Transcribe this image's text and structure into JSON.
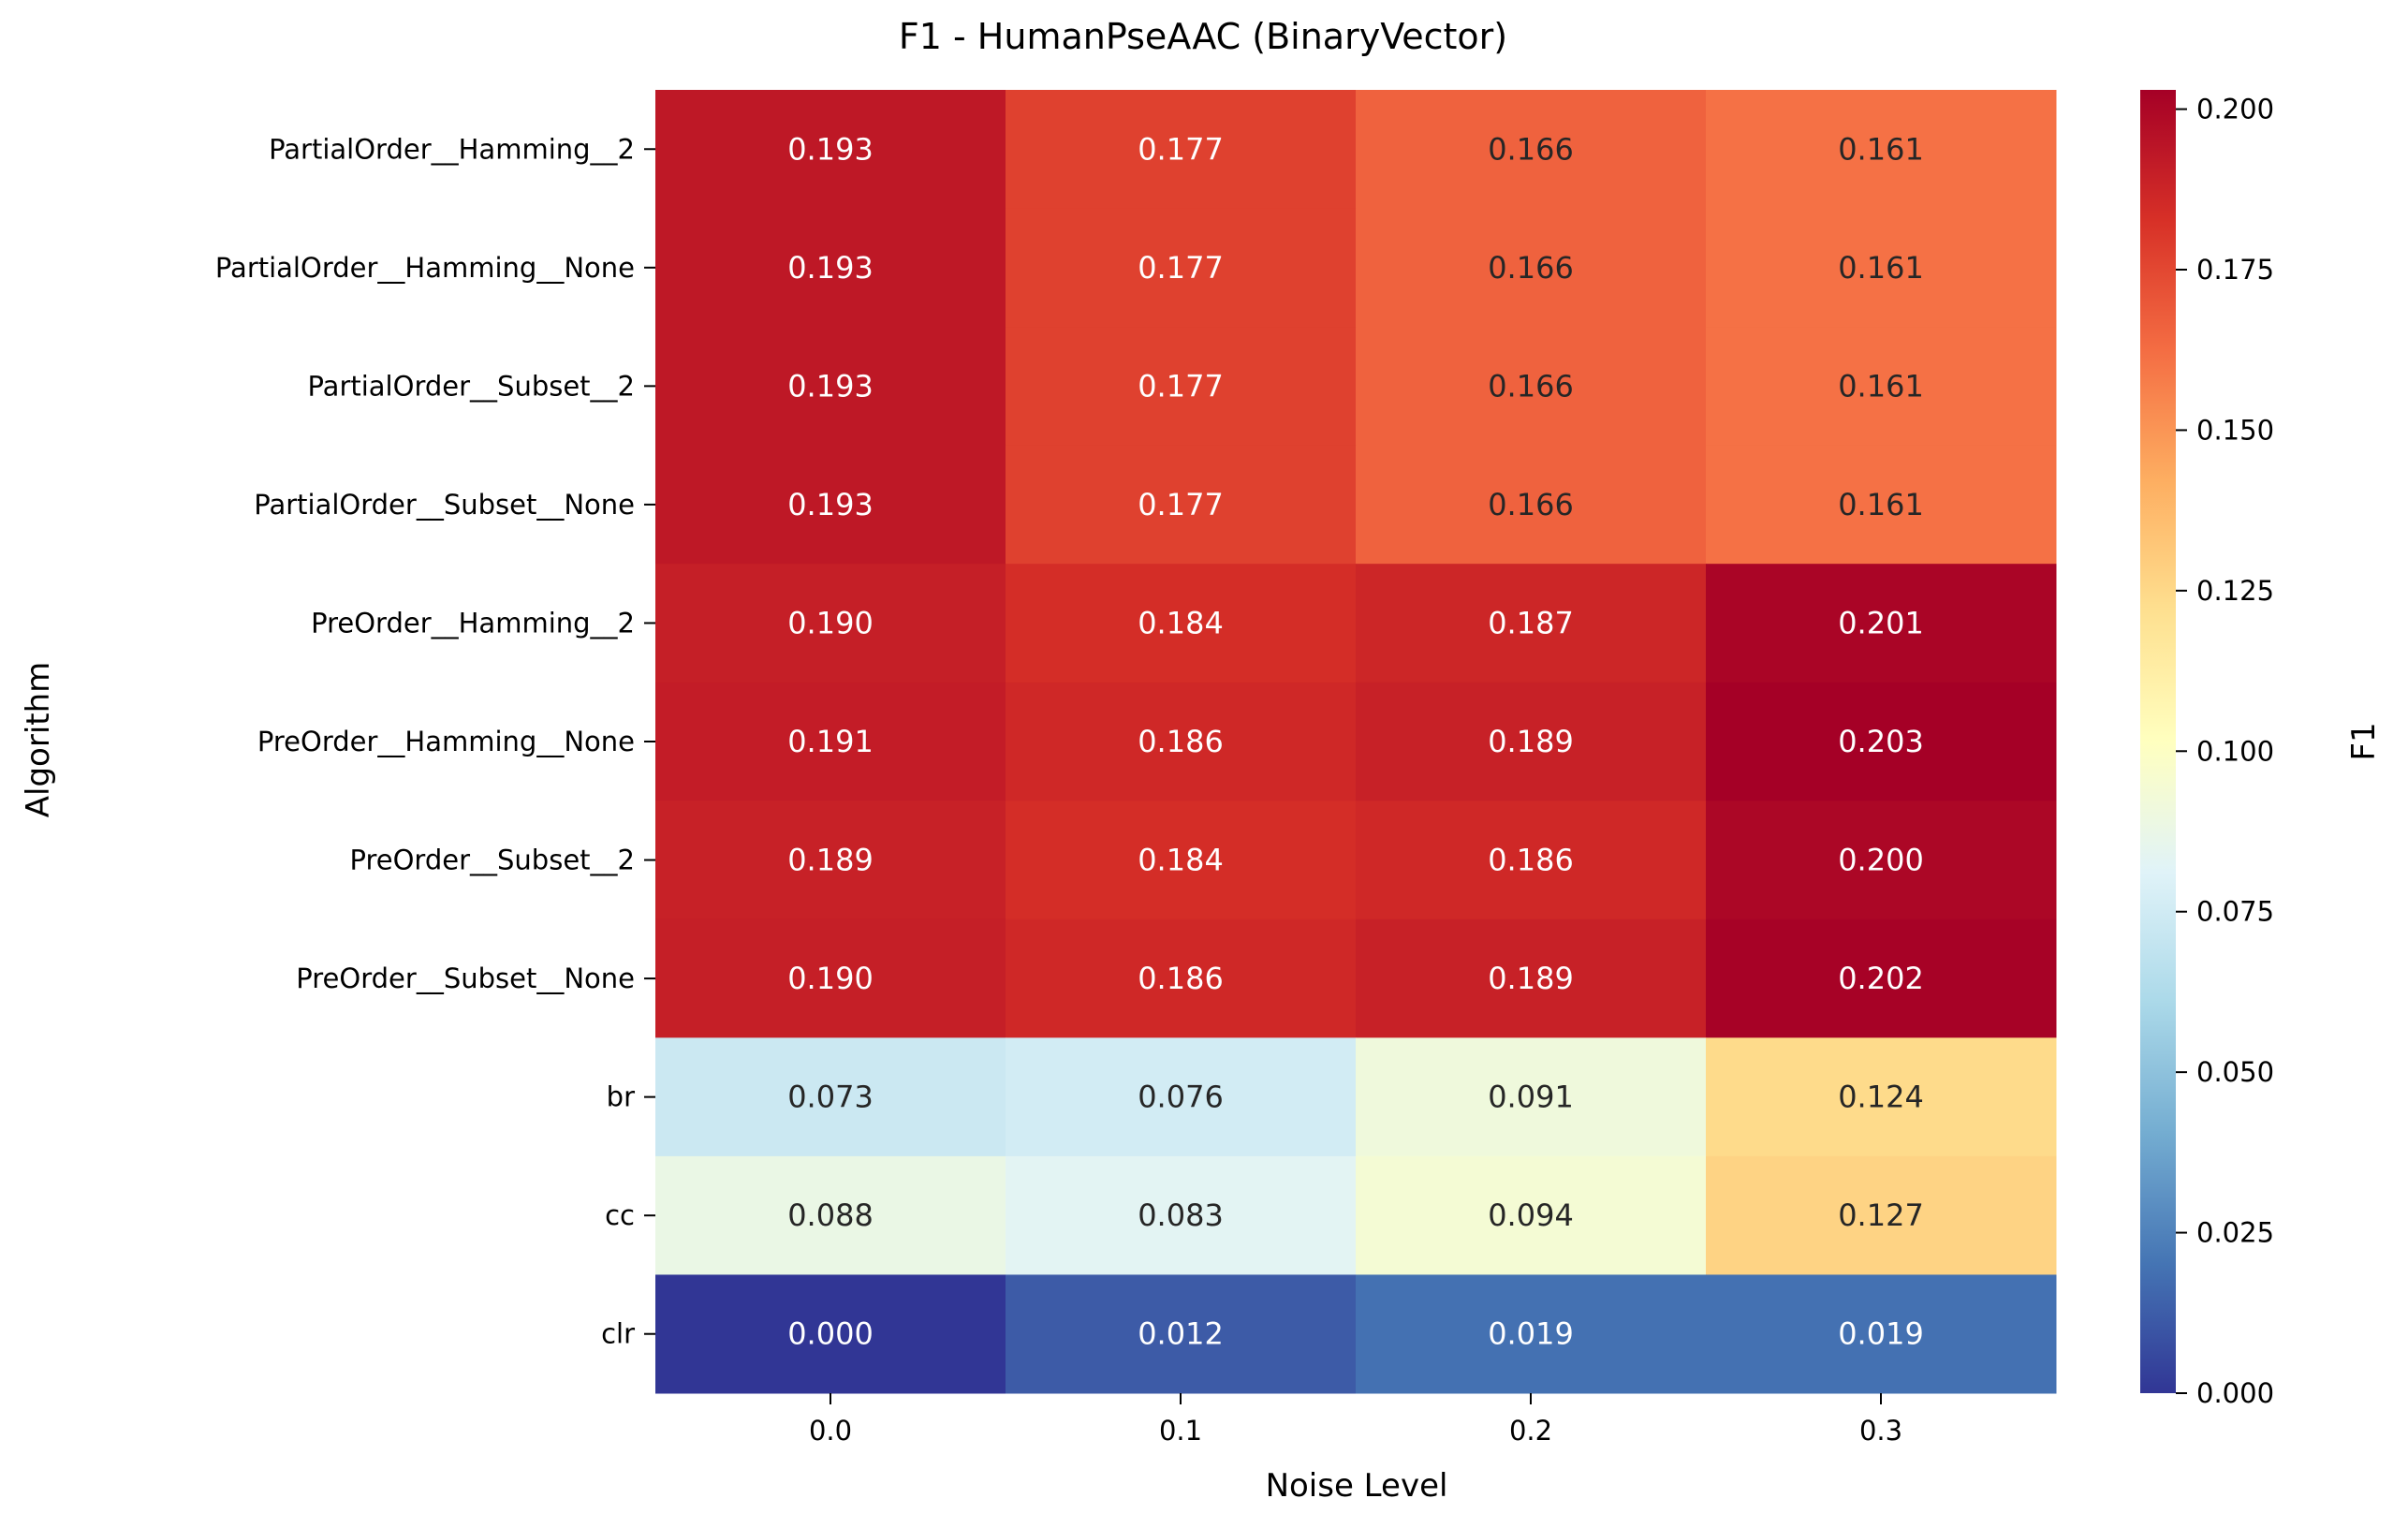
{
  "chart_data": {
    "type": "heatmap",
    "title": "F1 - HumanPseAAC (BinaryVector)",
    "xlabel": "Noise Level",
    "ylabel": "Algorithm",
    "colorbar_label": "F1",
    "colormap": "RdYlBu_r",
    "vmin": 0.0,
    "vmax": 0.203,
    "x_categories": [
      "0.0",
      "0.1",
      "0.2",
      "0.3"
    ],
    "y_categories": [
      "PartialOrder__Hamming__2",
      "PartialOrder__Hamming__None",
      "PartialOrder__Subset__2",
      "PartialOrder__Subset__None",
      "PreOrder__Hamming__2",
      "PreOrder__Hamming__None",
      "PreOrder__Subset__2",
      "PreOrder__Subset__None",
      "br",
      "cc",
      "clr"
    ],
    "values": [
      [
        0.193,
        0.177,
        0.166,
        0.161
      ],
      [
        0.193,
        0.177,
        0.166,
        0.161
      ],
      [
        0.193,
        0.177,
        0.166,
        0.161
      ],
      [
        0.193,
        0.177,
        0.166,
        0.161
      ],
      [
        0.19,
        0.184,
        0.187,
        0.201
      ],
      [
        0.191,
        0.186,
        0.189,
        0.203
      ],
      [
        0.189,
        0.184,
        0.186,
        0.2
      ],
      [
        0.19,
        0.186,
        0.189,
        0.202
      ],
      [
        0.073,
        0.076,
        0.091,
        0.124
      ],
      [
        0.088,
        0.083,
        0.094,
        0.127
      ],
      [
        0.0,
        0.012,
        0.019,
        0.019
      ]
    ],
    "cell_labels": [
      [
        "0.193",
        "0.177",
        "0.166",
        "0.161"
      ],
      [
        "0.193",
        "0.177",
        "0.166",
        "0.161"
      ],
      [
        "0.193",
        "0.177",
        "0.166",
        "0.161"
      ],
      [
        "0.193",
        "0.177",
        "0.166",
        "0.161"
      ],
      [
        "0.190",
        "0.184",
        "0.187",
        "0.201"
      ],
      [
        "0.191",
        "0.186",
        "0.189",
        "0.203"
      ],
      [
        "0.189",
        "0.184",
        "0.186",
        "0.200"
      ],
      [
        "0.190",
        "0.186",
        "0.189",
        "0.202"
      ],
      [
        "0.073",
        "0.076",
        "0.091",
        "0.124"
      ],
      [
        "0.088",
        "0.083",
        "0.094",
        "0.127"
      ],
      [
        "0.000",
        "0.012",
        "0.019",
        "0.019"
      ]
    ],
    "colorbar_ticks": [
      "0.000",
      "0.025",
      "0.050",
      "0.075",
      "0.100",
      "0.125",
      "0.150",
      "0.175",
      "0.200"
    ],
    "colorbar_tick_values": [
      0.0,
      0.025,
      0.05,
      0.075,
      0.1,
      0.125,
      0.15,
      0.175,
      0.2
    ],
    "grid": false
  }
}
